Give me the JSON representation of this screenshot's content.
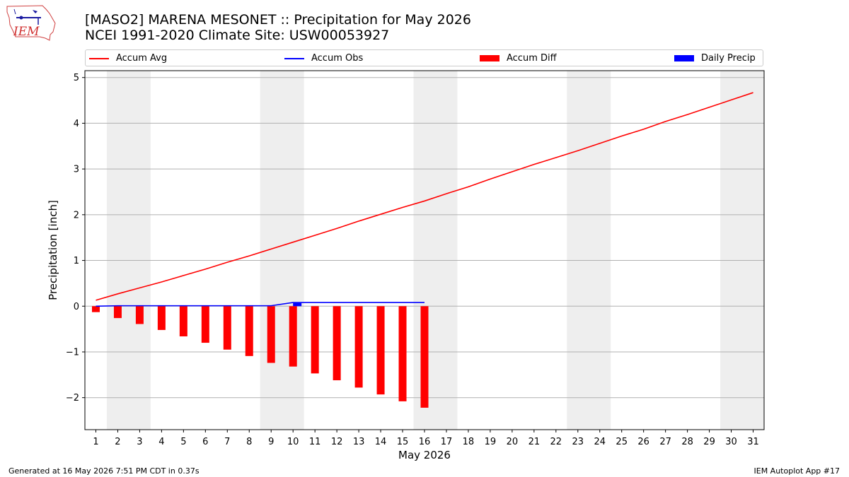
{
  "header": {
    "title_line1": "[MASO2] MARENA MESONET :: Precipitation for May 2026",
    "title_line2": "NCEI 1991-2020 Climate Site: USW00053927",
    "logo_text": "IEM"
  },
  "footer": {
    "left": "Generated at 16 May 2026 7:51 PM CDT in 0.37s",
    "right": "IEM Autoplot App #17"
  },
  "colors": {
    "accum_avg": "#ff0000",
    "accum_obs": "#0000ff",
    "accum_diff": "#ff0000",
    "daily_precip": "#0000ff",
    "weekend_band": "#eeeeee",
    "grid": "#b0b0b0"
  },
  "chart_data": {
    "type": "bar",
    "xlabel": "May 2026",
    "ylabel": "Precipitation [inch]",
    "ylim": [
      -2.7,
      5.15
    ],
    "xlim": [
      0.5,
      31.5
    ],
    "yticks": [
      -2,
      -1,
      0,
      1,
      2,
      3,
      4,
      5
    ],
    "ytick_labels": [
      "−2",
      "−1",
      "0",
      "1",
      "2",
      "3",
      "4",
      "5"
    ],
    "days": [
      1,
      2,
      3,
      4,
      5,
      6,
      7,
      8,
      9,
      10,
      11,
      12,
      13,
      14,
      15,
      16,
      17,
      18,
      19,
      20,
      21,
      22,
      23,
      24,
      25,
      26,
      27,
      28,
      29,
      30,
      31
    ],
    "weekend_shading": [
      [
        2,
        3
      ],
      [
        9,
        10
      ],
      [
        16,
        17
      ],
      [
        23,
        24
      ],
      [
        30,
        31
      ]
    ],
    "grid": "horizontal",
    "legend_position": "top",
    "legend": [
      "Accum Avg",
      "Accum Obs",
      "Accum Diff",
      "Daily Precip"
    ],
    "series": [
      {
        "name": "Accum Avg",
        "kind": "line",
        "x": [
          1,
          2,
          3,
          4,
          5,
          6,
          7,
          8,
          9,
          10,
          11,
          12,
          13,
          14,
          15,
          16,
          17,
          18,
          19,
          20,
          21,
          22,
          23,
          24,
          25,
          26,
          27,
          28,
          29,
          30,
          31
        ],
        "values": [
          0.13,
          0.27,
          0.4,
          0.53,
          0.67,
          0.81,
          0.96,
          1.1,
          1.25,
          1.4,
          1.55,
          1.7,
          1.86,
          2.01,
          2.16,
          2.3,
          2.46,
          2.61,
          2.78,
          2.94,
          3.1,
          3.25,
          3.4,
          3.56,
          3.72,
          3.87,
          4.04,
          4.19,
          4.35,
          4.51,
          4.67
        ]
      },
      {
        "name": "Accum Obs",
        "kind": "line",
        "x": [
          1,
          2,
          3,
          4,
          5,
          6,
          7,
          8,
          9,
          10,
          11,
          12,
          13,
          14,
          15,
          16
        ],
        "values": [
          0,
          0.01,
          0.01,
          0.01,
          0.01,
          0.01,
          0.01,
          0.01,
          0.01,
          0.08,
          0.08,
          0.08,
          0.08,
          0.08,
          0.08,
          0.08
        ]
      },
      {
        "name": "Accum Diff",
        "kind": "bar",
        "x": [
          1,
          2,
          3,
          4,
          5,
          6,
          7,
          8,
          9,
          10,
          11,
          12,
          13,
          14,
          15,
          16
        ],
        "values": [
          -0.13,
          -0.26,
          -0.39,
          -0.52,
          -0.66,
          -0.8,
          -0.95,
          -1.09,
          -1.24,
          -1.32,
          -1.47,
          -1.62,
          -1.78,
          -1.93,
          -2.08,
          -2.22
        ]
      },
      {
        "name": "Daily Precip",
        "kind": "bar",
        "x": [
          10
        ],
        "values": [
          0.07
        ]
      }
    ]
  }
}
